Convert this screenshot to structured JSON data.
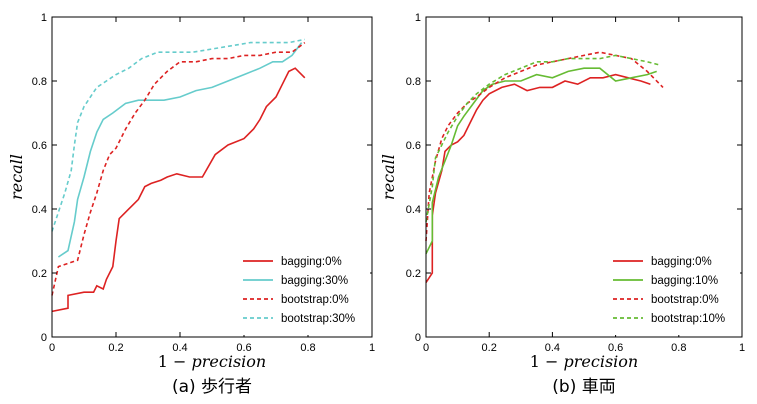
{
  "colors": {
    "red": "#dd2222",
    "cyan": "#66cccc",
    "green": "#66bb33"
  },
  "chart_data": [
    {
      "type": "line",
      "caption": "(a) 歩行者",
      "xlabel": "1 − precision",
      "ylabel": "recall",
      "xlim": [
        0,
        1
      ],
      "ylim": [
        0,
        1
      ],
      "xticks": [
        "0",
        "0.2",
        "0.4",
        "0.6",
        "0.8",
        "1"
      ],
      "yticks": [
        "0",
        "0.2",
        "0.4",
        "0.6",
        "0.8",
        "1"
      ],
      "grid": false,
      "legend_position": "bottom-right",
      "series": [
        {
          "name": "bagging:0%",
          "color": "#dd2222",
          "dash": "solid",
          "points": [
            [
              0.0,
              0.08
            ],
            [
              0.05,
              0.09
            ],
            [
              0.05,
              0.13
            ],
            [
              0.1,
              0.14
            ],
            [
              0.13,
              0.14
            ],
            [
              0.14,
              0.16
            ],
            [
              0.16,
              0.15
            ],
            [
              0.17,
              0.18
            ],
            [
              0.19,
              0.22
            ],
            [
              0.2,
              0.3
            ],
            [
              0.21,
              0.37
            ],
            [
              0.23,
              0.39
            ],
            [
              0.25,
              0.41
            ],
            [
              0.27,
              0.43
            ],
            [
              0.29,
              0.47
            ],
            [
              0.31,
              0.48
            ],
            [
              0.34,
              0.49
            ],
            [
              0.36,
              0.5
            ],
            [
              0.39,
              0.51
            ],
            [
              0.43,
              0.5
            ],
            [
              0.47,
              0.5
            ],
            [
              0.51,
              0.57
            ],
            [
              0.55,
              0.6
            ],
            [
              0.6,
              0.62
            ],
            [
              0.63,
              0.65
            ],
            [
              0.65,
              0.68
            ],
            [
              0.67,
              0.72
            ],
            [
              0.7,
              0.75
            ],
            [
              0.72,
              0.79
            ],
            [
              0.74,
              0.83
            ],
            [
              0.76,
              0.84
            ],
            [
              0.79,
              0.81
            ]
          ]
        },
        {
          "name": "bagging:30%",
          "color": "#66cccc",
          "dash": "solid",
          "points": [
            [
              0.02,
              0.25
            ],
            [
              0.05,
              0.27
            ],
            [
              0.07,
              0.36
            ],
            [
              0.08,
              0.43
            ],
            [
              0.1,
              0.5
            ],
            [
              0.12,
              0.58
            ],
            [
              0.14,
              0.64
            ],
            [
              0.16,
              0.68
            ],
            [
              0.19,
              0.7
            ],
            [
              0.23,
              0.73
            ],
            [
              0.27,
              0.74
            ],
            [
              0.31,
              0.74
            ],
            [
              0.35,
              0.74
            ],
            [
              0.4,
              0.75
            ],
            [
              0.45,
              0.77
            ],
            [
              0.5,
              0.78
            ],
            [
              0.55,
              0.8
            ],
            [
              0.6,
              0.82
            ],
            [
              0.65,
              0.84
            ],
            [
              0.69,
              0.86
            ],
            [
              0.72,
              0.86
            ],
            [
              0.75,
              0.88
            ],
            [
              0.78,
              0.92
            ]
          ]
        },
        {
          "name": "bootstrap:0%",
          "color": "#dd2222",
          "dash": "dashed",
          "points": [
            [
              0.0,
              0.13
            ],
            [
              0.02,
              0.22
            ],
            [
              0.05,
              0.23
            ],
            [
              0.08,
              0.24
            ],
            [
              0.1,
              0.32
            ],
            [
              0.12,
              0.39
            ],
            [
              0.14,
              0.45
            ],
            [
              0.16,
              0.52
            ],
            [
              0.18,
              0.57
            ],
            [
              0.2,
              0.59
            ],
            [
              0.23,
              0.65
            ],
            [
              0.26,
              0.7
            ],
            [
              0.29,
              0.74
            ],
            [
              0.32,
              0.79
            ],
            [
              0.36,
              0.83
            ],
            [
              0.4,
              0.86
            ],
            [
              0.45,
              0.86
            ],
            [
              0.5,
              0.87
            ],
            [
              0.55,
              0.87
            ],
            [
              0.6,
              0.88
            ],
            [
              0.65,
              0.88
            ],
            [
              0.7,
              0.89
            ],
            [
              0.75,
              0.89
            ],
            [
              0.79,
              0.92
            ]
          ]
        },
        {
          "name": "bootstrap:30%",
          "color": "#66cccc",
          "dash": "dashed",
          "points": [
            [
              0.0,
              0.33
            ],
            [
              0.02,
              0.39
            ],
            [
              0.04,
              0.45
            ],
            [
              0.06,
              0.52
            ],
            [
              0.07,
              0.6
            ],
            [
              0.08,
              0.67
            ],
            [
              0.1,
              0.72
            ],
            [
              0.12,
              0.75
            ],
            [
              0.14,
              0.78
            ],
            [
              0.17,
              0.8
            ],
            [
              0.2,
              0.82
            ],
            [
              0.24,
              0.84
            ],
            [
              0.28,
              0.87
            ],
            [
              0.33,
              0.89
            ],
            [
              0.38,
              0.89
            ],
            [
              0.44,
              0.89
            ],
            [
              0.5,
              0.9
            ],
            [
              0.56,
              0.91
            ],
            [
              0.62,
              0.92
            ],
            [
              0.68,
              0.92
            ],
            [
              0.74,
              0.92
            ],
            [
              0.79,
              0.93
            ]
          ]
        }
      ]
    },
    {
      "type": "line",
      "caption": "(b) 車両",
      "xlabel": "1 − precision",
      "ylabel": "recall",
      "xlim": [
        0,
        1
      ],
      "ylim": [
        0,
        1
      ],
      "xticks": [
        "0",
        "0.2",
        "0.4",
        "0.6",
        "0.8",
        "1"
      ],
      "yticks": [
        "0",
        "0.2",
        "0.4",
        "0.6",
        "0.8",
        "1"
      ],
      "grid": false,
      "legend_position": "bottom-right",
      "series": [
        {
          "name": "bagging:0%",
          "color": "#dd2222",
          "dash": "solid",
          "points": [
            [
              0.0,
              0.17
            ],
            [
              0.02,
              0.2
            ],
            [
              0.02,
              0.38
            ],
            [
              0.03,
              0.45
            ],
            [
              0.05,
              0.52
            ],
            [
              0.06,
              0.58
            ],
            [
              0.08,
              0.6
            ],
            [
              0.1,
              0.61
            ],
            [
              0.12,
              0.63
            ],
            [
              0.14,
              0.67
            ],
            [
              0.16,
              0.71
            ],
            [
              0.18,
              0.74
            ],
            [
              0.2,
              0.76
            ],
            [
              0.24,
              0.78
            ],
            [
              0.28,
              0.79
            ],
            [
              0.32,
              0.77
            ],
            [
              0.36,
              0.78
            ],
            [
              0.4,
              0.78
            ],
            [
              0.44,
              0.8
            ],
            [
              0.48,
              0.79
            ],
            [
              0.52,
              0.81
            ],
            [
              0.56,
              0.81
            ],
            [
              0.6,
              0.82
            ],
            [
              0.64,
              0.81
            ],
            [
              0.68,
              0.8
            ],
            [
              0.71,
              0.79
            ]
          ]
        },
        {
          "name": "bagging:10%",
          "color": "#66bb33",
          "dash": "solid",
          "points": [
            [
              0.0,
              0.26
            ],
            [
              0.02,
              0.3
            ],
            [
              0.02,
              0.42
            ],
            [
              0.04,
              0.5
            ],
            [
              0.06,
              0.55
            ],
            [
              0.08,
              0.6
            ],
            [
              0.1,
              0.66
            ],
            [
              0.12,
              0.69
            ],
            [
              0.15,
              0.73
            ],
            [
              0.18,
              0.77
            ],
            [
              0.21,
              0.79
            ],
            [
              0.25,
              0.8
            ],
            [
              0.3,
              0.8
            ],
            [
              0.35,
              0.82
            ],
            [
              0.4,
              0.81
            ],
            [
              0.45,
              0.83
            ],
            [
              0.5,
              0.84
            ],
            [
              0.55,
              0.84
            ],
            [
              0.6,
              0.8
            ],
            [
              0.65,
              0.81
            ],
            [
              0.7,
              0.82
            ],
            [
              0.73,
              0.83
            ]
          ]
        },
        {
          "name": "bootstrap:0%",
          "color": "#dd2222",
          "dash": "dashed",
          "points": [
            [
              0.0,
              0.3
            ],
            [
              0.01,
              0.45
            ],
            [
              0.03,
              0.55
            ],
            [
              0.05,
              0.62
            ],
            [
              0.07,
              0.66
            ],
            [
              0.1,
              0.7
            ],
            [
              0.13,
              0.73
            ],
            [
              0.16,
              0.75
            ],
            [
              0.2,
              0.78
            ],
            [
              0.25,
              0.81
            ],
            [
              0.3,
              0.83
            ],
            [
              0.35,
              0.85
            ],
            [
              0.4,
              0.86
            ],
            [
              0.45,
              0.87
            ],
            [
              0.5,
              0.88
            ],
            [
              0.55,
              0.89
            ],
            [
              0.6,
              0.88
            ],
            [
              0.65,
              0.87
            ],
            [
              0.7,
              0.83
            ],
            [
              0.75,
              0.78
            ]
          ]
        },
        {
          "name": "bootstrap:10%",
          "color": "#66bb33",
          "dash": "dashed",
          "points": [
            [
              0.0,
              0.36
            ],
            [
              0.02,
              0.47
            ],
            [
              0.03,
              0.56
            ],
            [
              0.05,
              0.6
            ],
            [
              0.07,
              0.64
            ],
            [
              0.1,
              0.69
            ],
            [
              0.13,
              0.73
            ],
            [
              0.16,
              0.76
            ],
            [
              0.2,
              0.79
            ],
            [
              0.25,
              0.82
            ],
            [
              0.3,
              0.84
            ],
            [
              0.35,
              0.86
            ],
            [
              0.4,
              0.86
            ],
            [
              0.45,
              0.87
            ],
            [
              0.5,
              0.87
            ],
            [
              0.55,
              0.87
            ],
            [
              0.6,
              0.88
            ],
            [
              0.65,
              0.87
            ],
            [
              0.7,
              0.86
            ],
            [
              0.74,
              0.85
            ]
          ]
        }
      ]
    }
  ]
}
